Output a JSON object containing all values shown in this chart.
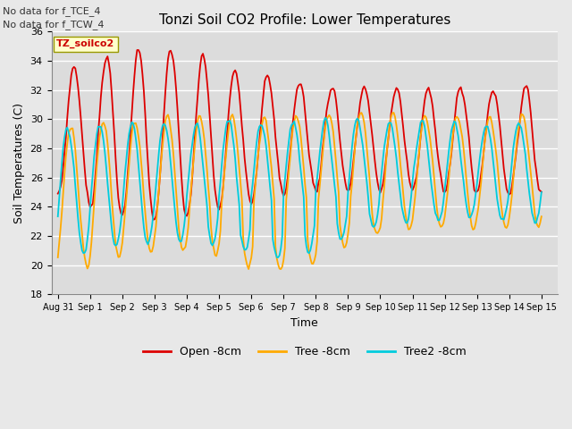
{
  "title": "Tonzi Soil CO2 Profile: Lower Temperatures",
  "xlabel": "Time",
  "ylabel": "Soil Temperatures (C)",
  "ylim": [
    18,
    36
  ],
  "yticks": [
    18,
    20,
    22,
    24,
    26,
    28,
    30,
    32,
    34,
    36
  ],
  "annotation1": "No data for f_TCE_4",
  "annotation2": "No data for f_TCW_4",
  "legend_box_label": "TZ_soilco2",
  "legend_items": [
    "Open -8cm",
    "Tree -8cm",
    "Tree2 -8cm"
  ],
  "line_colors": [
    "#dd0000",
    "#ffaa00",
    "#00ccdd"
  ],
  "plot_bg": "#dcdcdc",
  "grid_color": "#ffffff",
  "fig_bg": "#e8e8e8"
}
